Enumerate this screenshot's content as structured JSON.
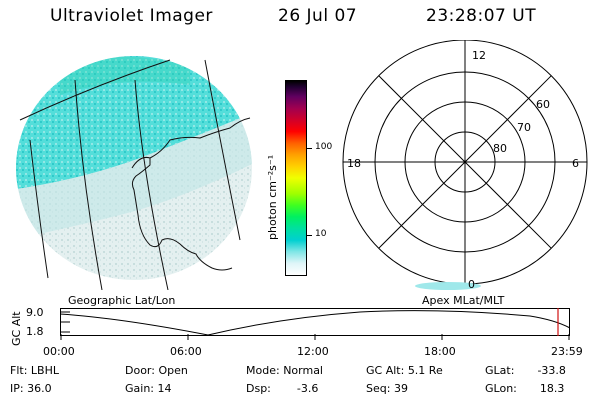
{
  "header": {
    "instrument": "Ultraviolet Imager",
    "date": "26 Jul 07",
    "time": "23:28:07 UT"
  },
  "colorbar": {
    "title": "photon cm⁻²s⁻¹",
    "ticks": [
      "100",
      "10"
    ]
  },
  "polar_plot": {
    "mlt_labels": [
      "12",
      "18",
      "6",
      "0"
    ],
    "mlat_labels": [
      "60",
      "70",
      "80"
    ]
  },
  "strip": {
    "geo_label": "Geographic Lat/Lon",
    "apex_label": "Apex  MLat/MLT",
    "axis_title": "GC Alt",
    "y_top": "9.0",
    "y_bottom": "1.8",
    "time_ticks": [
      "00:00",
      "06:00",
      "12:00",
      "18:00",
      "23:59"
    ]
  },
  "status": {
    "flt_label": "Flt:",
    "flt": "LBHL",
    "door_label": "Door:",
    "door": "Open",
    "mode_label": "Mode:",
    "mode": "Normal",
    "gcalt_label": "GC Alt:",
    "gcalt": "5.1 Re",
    "glat_label": "GLat:",
    "glat": "-33.8",
    "ip_label": "IP:",
    "ip": "36.0",
    "gain_label": "Gain:",
    "gain": "14",
    "dsp_label": "Dsp:",
    "dsp": "-3.6",
    "seq_label": "Seq:",
    "seq": "39",
    "glon_label": "GLon:",
    "glon": "18.3"
  },
  "colors": {
    "aurora": "#40e0d8",
    "marker": "#d01010"
  }
}
